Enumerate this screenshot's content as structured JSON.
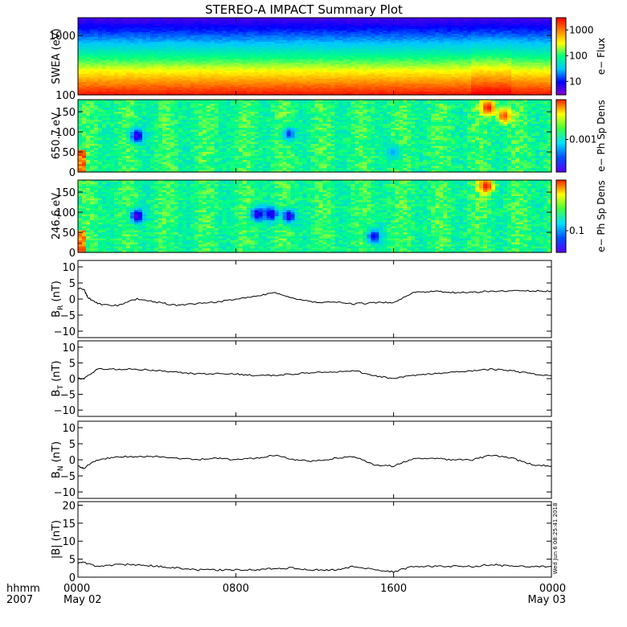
{
  "title": "STEREO-A IMPACT Summary Plot",
  "timestamp": "Wed Jun 6 08:25:41 2018",
  "time_axis": {
    "label_line1": "hhmm",
    "label_line2": "2007",
    "ticks": [
      {
        "hour": 0,
        "label": "0000",
        "date": "May 02"
      },
      {
        "hour": 8,
        "label": "0800",
        "date": ""
      },
      {
        "hour": 16,
        "label": "1600",
        "date": ""
      },
      {
        "hour": 24,
        "label": "0000",
        "date": "May 03"
      }
    ],
    "range_hours": [
      0,
      24
    ]
  },
  "chart_data": [
    {
      "type": "heatmap",
      "ylabel": "SWEA (eV)",
      "yscale": "log",
      "ylim": [
        100,
        2000
      ],
      "yticks": [
        {
          "v": 100,
          "label": "100"
        },
        {
          "v": 1000,
          "label": "1000"
        }
      ],
      "colorbar_label": "e− Flux",
      "colorbar_scale": "log",
      "colorbar_range": [
        3,
        3000
      ],
      "colorbar_ticks": [
        {
          "v": 10,
          "label": "10"
        },
        {
          "v": 100,
          "label": "100"
        },
        {
          "v": 1000,
          "label": "1000"
        }
      ],
      "colormap": [
        "#8a00d4",
        "#0000ff",
        "#00c8ff",
        "#00ff80",
        "#ffff00",
        "#ff8000",
        "#ff0000"
      ]
    },
    {
      "type": "heatmap",
      "ylabel": "650.7 eV",
      "ylim": [
        0,
        180
      ],
      "yticks": [
        {
          "v": 0,
          "label": "0"
        },
        {
          "v": 50,
          "label": "50"
        },
        {
          "v": 100,
          "label": "100"
        },
        {
          "v": 150,
          "label": "150"
        }
      ],
      "colorbar_label": "e− Ph Sp Dens",
      "colorbar_ticks": [
        {
          "v": 0.45,
          "label": "0.001"
        }
      ],
      "features": [
        {
          "t": 3.0,
          "p": 90,
          "level": 0.08
        },
        {
          "t": 10.7,
          "p": 95,
          "level": 0.2
        },
        {
          "t": 16.0,
          "p": 50,
          "level": 0.3
        },
        {
          "t": 20.8,
          "p": 160,
          "level": 0.98
        },
        {
          "t": 21.6,
          "p": 140,
          "level": 0.9
        }
      ]
    },
    {
      "type": "heatmap",
      "ylabel": "246.6 eV",
      "ylim": [
        0,
        180
      ],
      "yticks": [
        {
          "v": 0,
          "label": "0"
        },
        {
          "v": 50,
          "label": "50"
        },
        {
          "v": 100,
          "label": "100"
        },
        {
          "v": 150,
          "label": "150"
        }
      ],
      "colorbar_label": "e− Ph Sp Dens",
      "colorbar_ticks": [
        {
          "v": 0.3,
          "label": "0.1"
        }
      ],
      "features": [
        {
          "t": 3.0,
          "p": 90,
          "level": 0.05
        },
        {
          "t": 9.1,
          "p": 95,
          "level": 0.1
        },
        {
          "t": 9.8,
          "p": 95,
          "level": 0.1
        },
        {
          "t": 10.7,
          "p": 90,
          "level": 0.1
        },
        {
          "t": 15.0,
          "p": 40,
          "level": 0.15
        },
        {
          "t": 20.7,
          "p": 165,
          "level": 0.98
        }
      ]
    },
    {
      "type": "line",
      "ylabel": "B",
      "ylabel_sub": "R",
      "ylabel_unit": "(nT)",
      "ylim": [
        -12,
        12
      ],
      "yticks": [
        {
          "v": -10,
          "label": "−10"
        },
        {
          "v": -5,
          "label": "−5"
        },
        {
          "v": 0,
          "label": "0"
        },
        {
          "v": 5,
          "label": "5"
        },
        {
          "v": 10,
          "label": "10"
        }
      ],
      "x": [
        0,
        0.3,
        0.5,
        1,
        2,
        3,
        4,
        5,
        6,
        7,
        8,
        9,
        10,
        11,
        12,
        13,
        14,
        15,
        16,
        17,
        18,
        19,
        20,
        21,
        22,
        23,
        24
      ],
      "y": [
        3.5,
        3.0,
        0.5,
        -1.5,
        -2.0,
        0.0,
        -1.0,
        -2.0,
        -1.5,
        -1.0,
        0.0,
        1.0,
        2.0,
        0.0,
        -1.0,
        -1.0,
        -1.5,
        -1.2,
        -1.0,
        2.0,
        2.5,
        2.0,
        2.0,
        2.5,
        2.5,
        2.5,
        2.5
      ]
    },
    {
      "type": "line",
      "ylabel": "B",
      "ylabel_sub": "T",
      "ylabel_unit": "(nT)",
      "ylim": [
        -12,
        12
      ],
      "yticks": [
        {
          "v": -10,
          "label": "−10"
        },
        {
          "v": -5,
          "label": "−5"
        },
        {
          "v": 0,
          "label": "0"
        },
        {
          "v": 5,
          "label": "5"
        },
        {
          "v": 10,
          "label": "10"
        }
      ],
      "x": [
        0,
        0.3,
        1,
        2,
        3,
        4,
        5,
        6,
        7,
        8,
        9,
        10,
        11,
        12,
        13,
        14,
        15,
        16,
        17,
        18,
        19,
        20,
        21,
        22,
        23,
        24
      ],
      "y": [
        0.0,
        0.0,
        3.0,
        3.0,
        3.0,
        2.5,
        2.0,
        1.5,
        1.5,
        1.5,
        1.0,
        1.0,
        1.5,
        2.0,
        2.0,
        2.5,
        1.0,
        0.0,
        1.0,
        1.5,
        2.0,
        2.5,
        3.0,
        2.5,
        1.5,
        1.0
      ]
    },
    {
      "type": "line",
      "ylabel": "B",
      "ylabel_sub": "N",
      "ylabel_unit": "(nT)",
      "ylim": [
        -12,
        12
      ],
      "yticks": [
        {
          "v": -10,
          "label": "−10"
        },
        {
          "v": -5,
          "label": "−5"
        },
        {
          "v": 0,
          "label": "0"
        },
        {
          "v": 5,
          "label": "5"
        },
        {
          "v": 10,
          "label": "10"
        }
      ],
      "x": [
        0,
        0.3,
        1,
        2,
        3,
        4,
        5,
        6,
        7,
        8,
        9,
        10,
        11,
        12,
        13,
        14,
        15,
        16,
        17,
        18,
        19,
        20,
        21,
        22,
        23,
        24
      ],
      "y": [
        -2.0,
        -2.5,
        0.0,
        1.0,
        1.0,
        1.0,
        0.5,
        0.0,
        0.5,
        0.0,
        0.5,
        1.5,
        0.0,
        -0.5,
        0.5,
        1.0,
        -1.5,
        -2.0,
        0.5,
        0.5,
        0.0,
        0.0,
        1.5,
        0.5,
        -1.5,
        -2.0
      ]
    },
    {
      "type": "line",
      "ylabel": "|B|",
      "ylabel_unit": "(nT)",
      "ylim": [
        0,
        21
      ],
      "yticks": [
        {
          "v": 0,
          "label": "0"
        },
        {
          "v": 5,
          "label": "5"
        },
        {
          "v": 10,
          "label": "10"
        },
        {
          "v": 15,
          "label": "15"
        },
        {
          "v": 20,
          "label": "20"
        }
      ],
      "x": [
        0,
        0.3,
        1,
        2,
        3,
        4,
        5,
        6,
        7,
        8,
        9,
        10,
        11,
        12,
        13,
        14,
        15,
        16,
        17,
        18,
        19,
        20,
        21,
        22,
        23,
        24
      ],
      "y": [
        4.0,
        4.0,
        3.0,
        3.5,
        3.5,
        3.0,
        2.5,
        2.0,
        2.0,
        2.0,
        2.0,
        2.5,
        2.5,
        2.0,
        2.0,
        3.0,
        2.0,
        1.5,
        3.0,
        3.0,
        3.0,
        3.0,
        3.5,
        3.0,
        3.0,
        3.0
      ]
    }
  ]
}
